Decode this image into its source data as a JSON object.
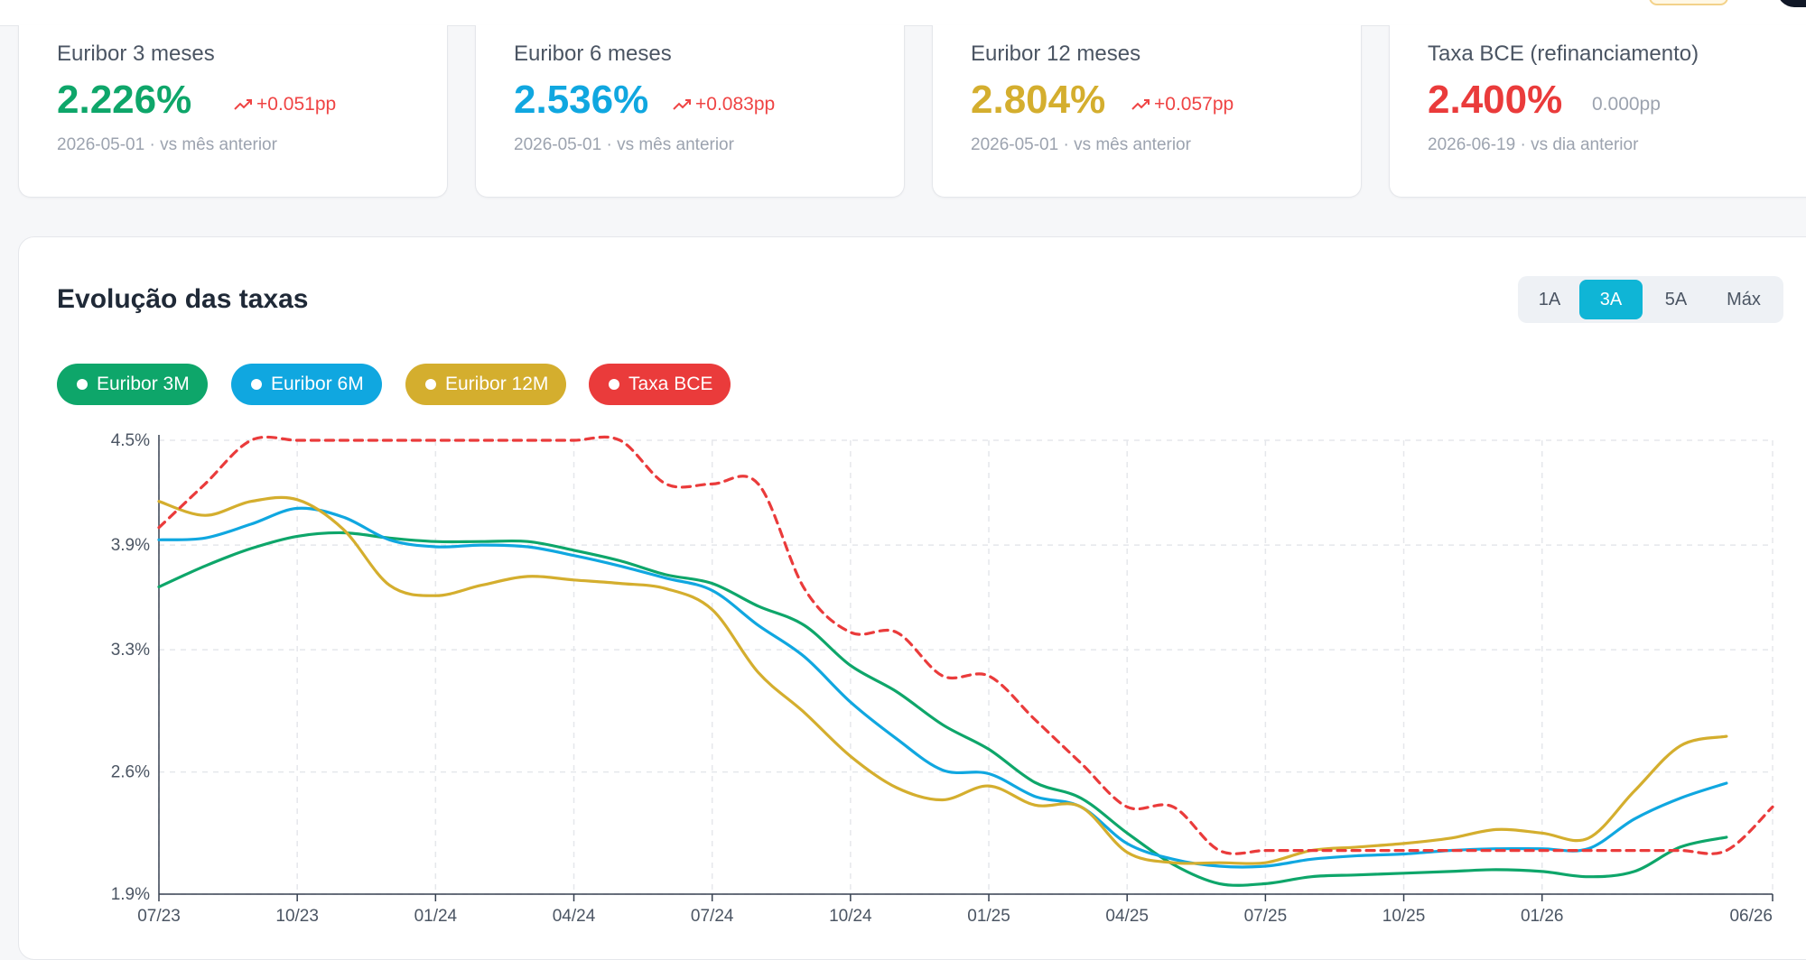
{
  "cards": [
    {
      "title": "Euribor 3 meses",
      "value": "2.226%",
      "delta": "+0.051pp",
      "delta_dir": "up",
      "sub": "2026-05-01 · vs mês anterior",
      "color": "#0ea66a"
    },
    {
      "title": "Euribor 6 meses",
      "value": "2.536%",
      "delta": "+0.083pp",
      "delta_dir": "up",
      "sub": "2026-05-01 · vs mês anterior",
      "color": "#10a7e0"
    },
    {
      "title": "Euribor 12 meses",
      "value": "2.804%",
      "delta": "+0.057pp",
      "delta_dir": "up",
      "sub": "2026-05-01 · vs mês anterior",
      "color": "#d4ae2e"
    },
    {
      "title": "Taxa BCE (refinanciamento)",
      "value": "2.400%",
      "delta": "0.000pp",
      "delta_dir": "flat",
      "sub": "2026-06-19 · vs dia anterior",
      "color": "#ea3b3b"
    }
  ],
  "panel": {
    "title": "Evolução das taxas",
    "ranges": [
      "1A",
      "3A",
      "5A",
      "Máx"
    ],
    "active_range": "3A"
  },
  "colors": {
    "delta_up": "#ef4444",
    "delta_flat": "#9ca3af",
    "grid": "#e5e7eb",
    "axis": "#374151"
  },
  "chart_data": {
    "type": "line",
    "title": "",
    "xlabel": "",
    "ylabel": "",
    "x_ticks": [
      "07/23",
      "10/23",
      "01/24",
      "04/24",
      "07/24",
      "10/24",
      "01/25",
      "04/25",
      "07/25",
      "10/25",
      "01/26",
      "06/26"
    ],
    "y_ticks": [
      "1.9%",
      "2.6%",
      "3.3%",
      "3.9%",
      "4.5%"
    ],
    "ylim": [
      1.9,
      4.5
    ],
    "grid": true,
    "legend": "top-left",
    "series": [
      {
        "name": "Euribor 3M",
        "color": "#0ea66a",
        "style": "solid",
        "x": [
          "2023-07",
          "2023-08",
          "2023-09",
          "2023-10",
          "2023-11",
          "2023-12",
          "2024-01",
          "2024-02",
          "2024-03",
          "2024-04",
          "2024-05",
          "2024-06",
          "2024-07",
          "2024-08",
          "2024-09",
          "2024-10",
          "2024-11",
          "2024-12",
          "2025-01",
          "2025-02",
          "2025-03",
          "2025-04",
          "2025-05",
          "2025-06",
          "2025-07",
          "2025-08",
          "2025-09",
          "2025-10",
          "2025-11",
          "2025-12",
          "2026-01",
          "2026-02",
          "2026-03",
          "2026-04",
          "2026-05"
        ],
        "y": [
          3.66,
          3.78,
          3.88,
          3.95,
          3.97,
          3.94,
          3.92,
          3.92,
          3.92,
          3.87,
          3.81,
          3.73,
          3.68,
          3.55,
          3.44,
          3.21,
          3.06,
          2.87,
          2.73,
          2.54,
          2.45,
          2.25,
          2.07,
          1.96,
          1.96,
          2.0,
          2.01,
          2.02,
          2.03,
          2.04,
          2.03,
          2.0,
          2.03,
          2.17,
          2.226
        ]
      },
      {
        "name": "Euribor 6M",
        "color": "#10a7e0",
        "style": "solid",
        "x": [
          "2023-07",
          "2023-08",
          "2023-09",
          "2023-10",
          "2023-11",
          "2023-12",
          "2024-01",
          "2024-02",
          "2024-03",
          "2024-04",
          "2024-05",
          "2024-06",
          "2024-07",
          "2024-08",
          "2024-09",
          "2024-10",
          "2024-11",
          "2024-12",
          "2025-01",
          "2025-02",
          "2025-03",
          "2025-04",
          "2025-05",
          "2025-06",
          "2025-07",
          "2025-08",
          "2025-09",
          "2025-10",
          "2025-11",
          "2025-12",
          "2026-01",
          "2026-02",
          "2026-03",
          "2026-04",
          "2026-05"
        ],
        "y": [
          3.93,
          3.94,
          4.02,
          4.11,
          4.06,
          3.93,
          3.89,
          3.9,
          3.89,
          3.84,
          3.78,
          3.71,
          3.64,
          3.44,
          3.26,
          3.0,
          2.79,
          2.61,
          2.59,
          2.46,
          2.4,
          2.19,
          2.1,
          2.06,
          2.06,
          2.1,
          2.12,
          2.13,
          2.15,
          2.16,
          2.16,
          2.16,
          2.33,
          2.45,
          2.536
        ]
      },
      {
        "name": "Euribor 12M",
        "color": "#d4ae2e",
        "style": "solid",
        "x": [
          "2023-07",
          "2023-08",
          "2023-09",
          "2023-10",
          "2023-11",
          "2023-12",
          "2024-01",
          "2024-02",
          "2024-03",
          "2024-04",
          "2024-05",
          "2024-06",
          "2024-07",
          "2024-08",
          "2024-09",
          "2024-10",
          "2024-11",
          "2024-12",
          "2025-01",
          "2025-02",
          "2025-03",
          "2025-04",
          "2025-05",
          "2025-06",
          "2025-07",
          "2025-08",
          "2025-09",
          "2025-10",
          "2025-11",
          "2025-12",
          "2026-01",
          "2026-02",
          "2026-03",
          "2026-04",
          "2026-05"
        ],
        "y": [
          4.15,
          4.07,
          4.15,
          4.16,
          3.99,
          3.67,
          3.61,
          3.67,
          3.72,
          3.7,
          3.68,
          3.65,
          3.53,
          3.17,
          2.94,
          2.69,
          2.51,
          2.44,
          2.52,
          2.41,
          2.4,
          2.14,
          2.08,
          2.08,
          2.08,
          2.15,
          2.17,
          2.19,
          2.22,
          2.27,
          2.25,
          2.22,
          2.49,
          2.75,
          2.804
        ]
      },
      {
        "name": "Taxa BCE",
        "color": "#ea3b3b",
        "style": "dashed",
        "x": [
          "2023-07",
          "2023-08",
          "2023-09",
          "2023-10",
          "2023-11",
          "2023-12",
          "2024-01",
          "2024-02",
          "2024-03",
          "2024-04",
          "2024-05",
          "2024-06",
          "2024-07",
          "2024-08",
          "2024-09",
          "2024-10",
          "2024-11",
          "2024-12",
          "2025-01",
          "2025-02",
          "2025-03",
          "2025-04",
          "2025-05",
          "2025-06",
          "2025-07",
          "2025-08",
          "2025-09",
          "2025-10",
          "2025-11",
          "2025-12",
          "2026-01",
          "2026-02",
          "2026-03",
          "2026-04",
          "2026-05",
          "2026-06"
        ],
        "y": [
          4.0,
          4.25,
          4.5,
          4.5,
          4.5,
          4.5,
          4.5,
          4.5,
          4.5,
          4.5,
          4.5,
          4.25,
          4.25,
          4.25,
          3.65,
          3.4,
          3.4,
          3.15,
          3.15,
          2.9,
          2.65,
          2.4,
          2.4,
          2.15,
          2.15,
          2.15,
          2.15,
          2.15,
          2.15,
          2.15,
          2.15,
          2.15,
          2.15,
          2.15,
          2.15,
          2.4
        ]
      }
    ]
  }
}
